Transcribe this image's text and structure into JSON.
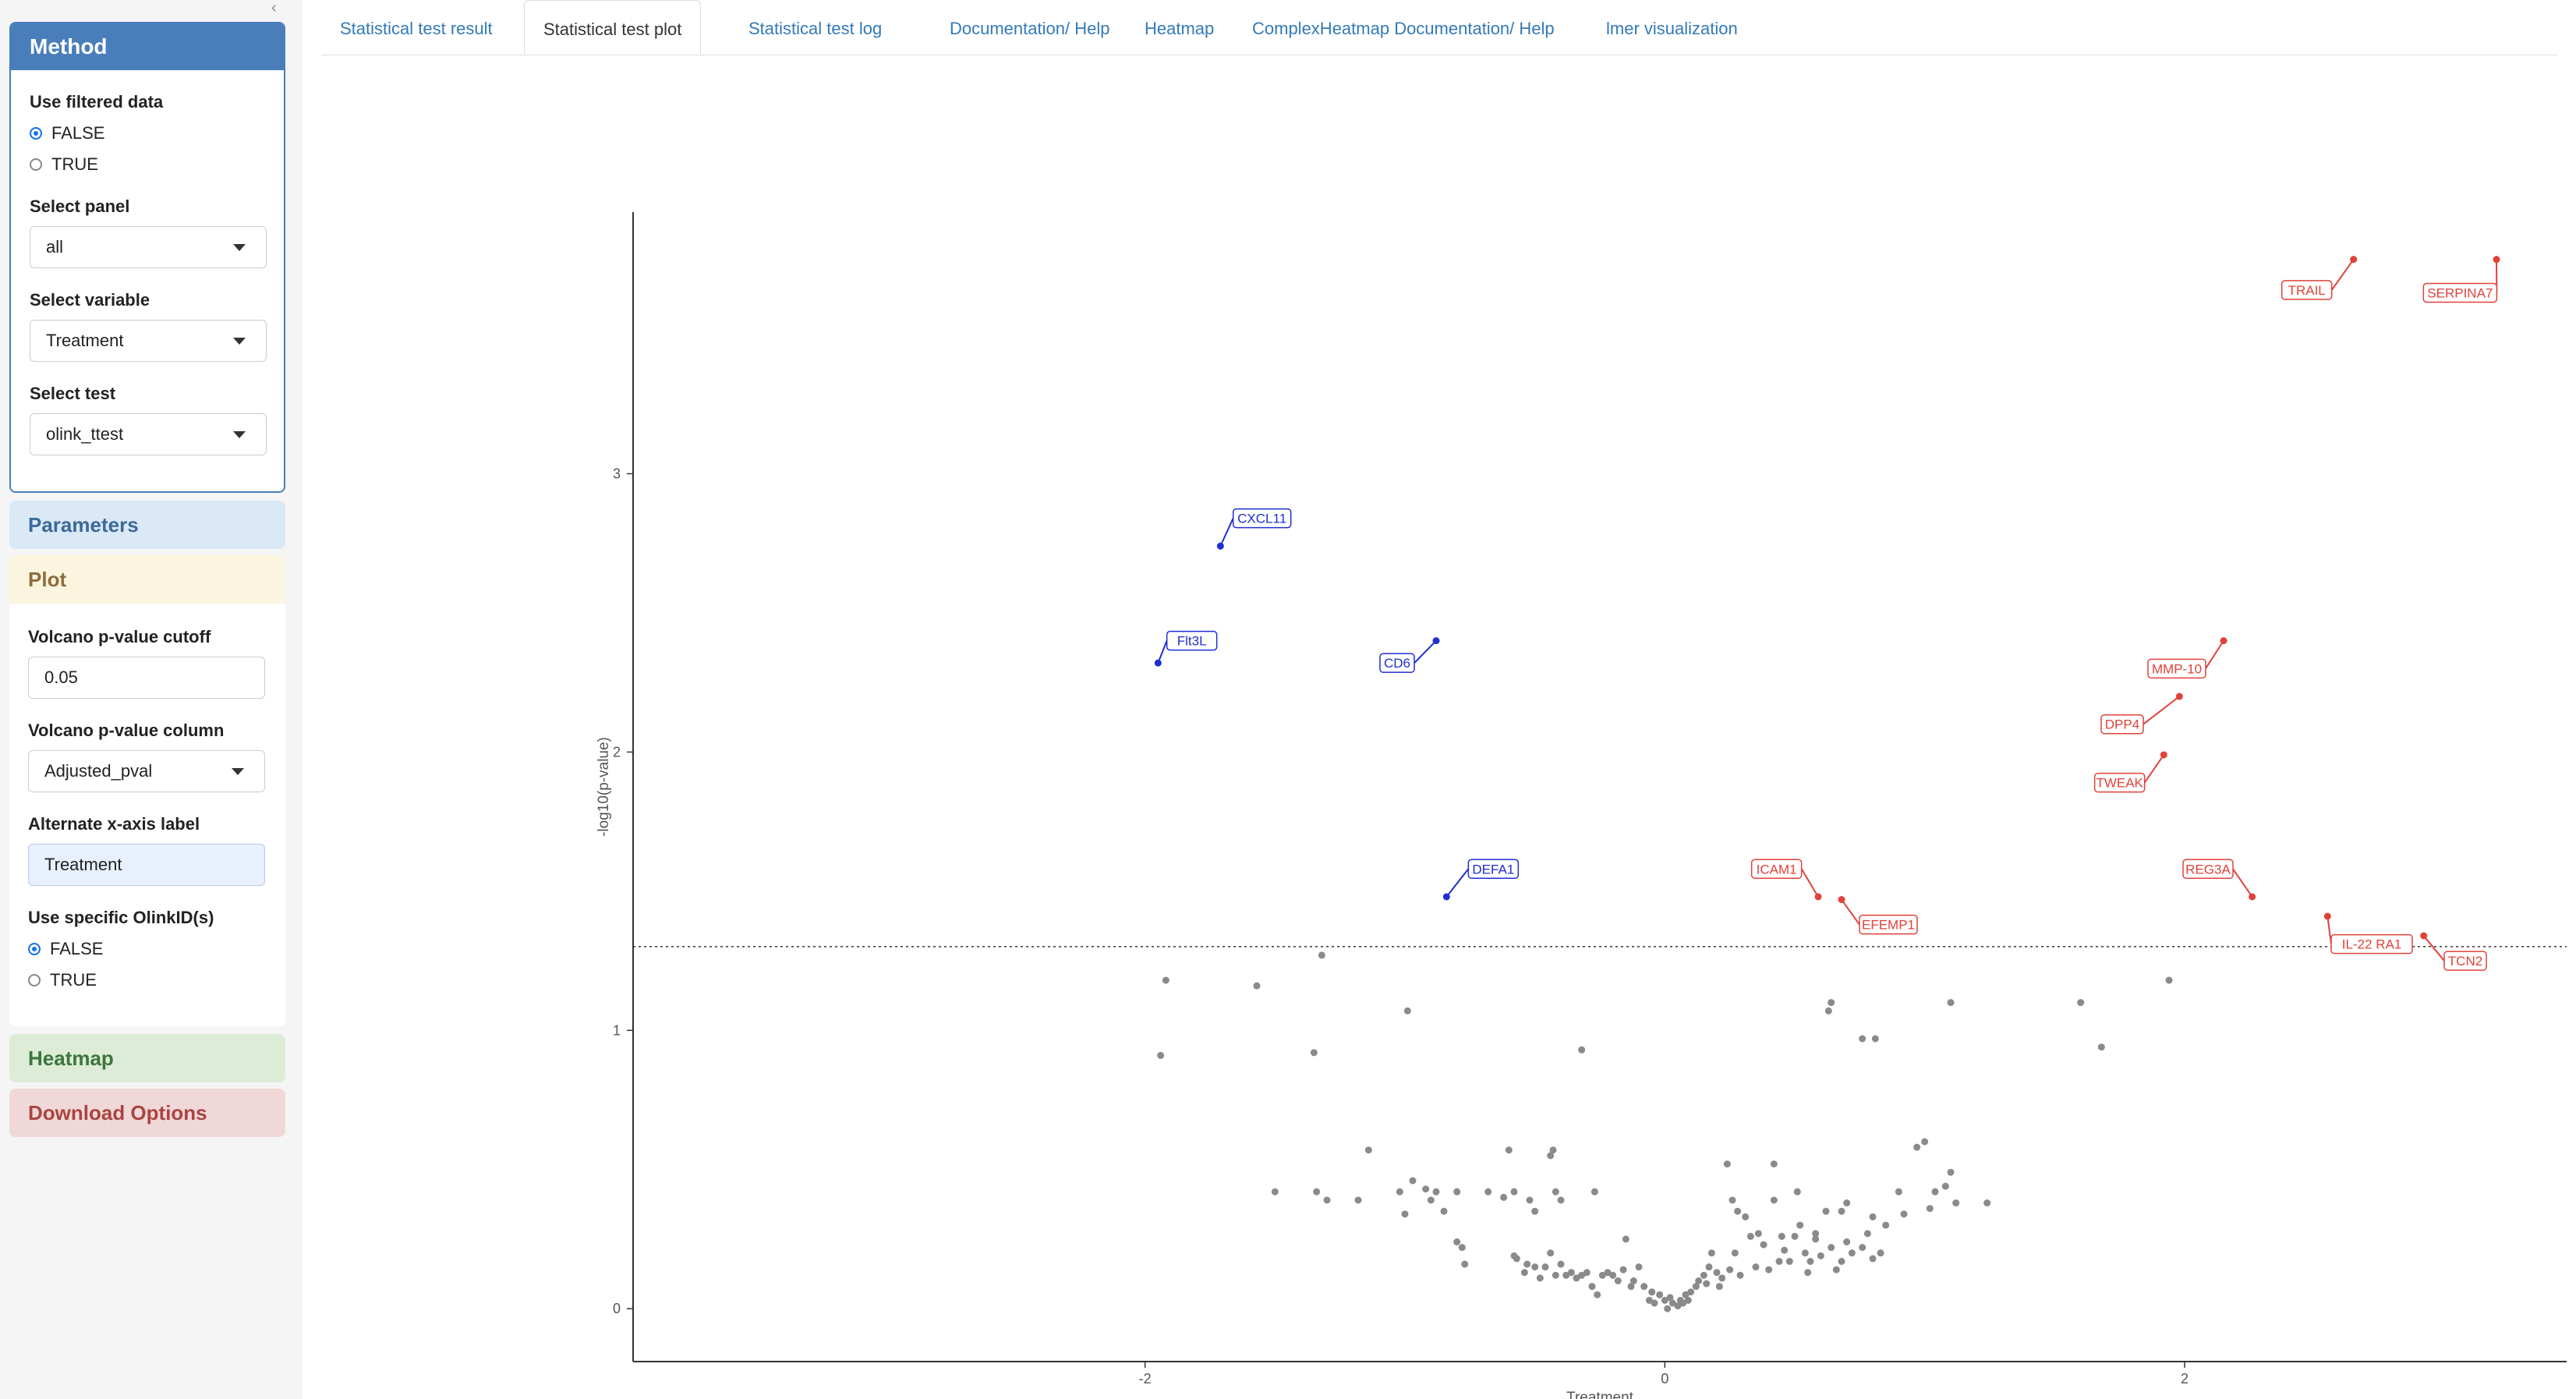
{
  "sidebar": {
    "method": {
      "title": "Method",
      "use_filtered_label": "Use filtered data",
      "use_filtered_options": [
        "FALSE",
        "TRUE"
      ],
      "use_filtered_selected": "FALSE",
      "panel_label": "Select panel",
      "panel_value": "all",
      "variable_label": "Select variable",
      "variable_value": "Treatment",
      "test_label": "Select test",
      "test_value": "olink_ttest"
    },
    "parameters_title": "Parameters",
    "plot": {
      "title": "Plot",
      "cutoff_label": "Volcano p-value cutoff",
      "cutoff_value": "0.05",
      "pcol_label": "Volcano p-value column",
      "pcol_value": "Adjusted_pval",
      "xaxis_label": "Alternate x-axis label",
      "xaxis_value": "Treatment",
      "olinkid_label": "Use specific OlinkID(s)",
      "olinkid_options": [
        "FALSE",
        "TRUE"
      ],
      "olinkid_selected": "FALSE"
    },
    "heatmap_title": "Heatmap",
    "download_title": "Download Options"
  },
  "tabs": [
    {
      "label": "Statistical test result",
      "active": false
    },
    {
      "label": "Statistical test plot",
      "active": true
    },
    {
      "label": "Statistical test log",
      "active": false
    },
    {
      "label": "Documentation/ Help",
      "active": false
    },
    {
      "label": "Heatmap",
      "active": false
    },
    {
      "label": "ComplexHeatmap Documentation/ Help",
      "active": false
    },
    {
      "label": "lmer visualization",
      "active": false
    }
  ],
  "colors": {
    "down": "#1f2fd1",
    "up": "#e0423a",
    "ns": "#8a8a8a",
    "accent": "#4a7ebb"
  },
  "chart_data": {
    "type": "scatter",
    "xlabel": "Treatment",
    "ylabel": "-log10(p-value)",
    "xlim": [
      -3.97,
      3.47
    ],
    "ylim": [
      -0.19,
      3.94
    ],
    "x_ticks": [
      -2,
      0,
      2
    ],
    "x_tick_labels": [
      "-2",
      "0",
      "2"
    ],
    "y_ticks": [
      0,
      1,
      2,
      3
    ],
    "y_tick_labels": [
      "0",
      "1",
      "2",
      "3"
    ],
    "cutoff_y": 1.301,
    "grid": false,
    "labeled": [
      {
        "label": "TRAIL",
        "x": 2.65,
        "y": 3.77,
        "group": "up",
        "lx": 2.47,
        "ly": 3.66
      },
      {
        "label": "SERPINA7",
        "x": 3.2,
        "y": 3.77,
        "group": "up",
        "lx": 3.06,
        "ly": 3.65
      },
      {
        "label": "CXCL11",
        "x": -1.71,
        "y": 2.74,
        "group": "down",
        "lx": -1.55,
        "ly": 2.84
      },
      {
        "label": "Flt3L",
        "x": -1.95,
        "y": 2.32,
        "group": "down",
        "lx": -1.82,
        "ly": 2.4
      },
      {
        "label": "CD6",
        "x": -0.88,
        "y": 2.4,
        "group": "down",
        "lx": -1.03,
        "ly": 2.32
      },
      {
        "label": "MMP-10",
        "x": 2.15,
        "y": 2.4,
        "group": "up",
        "lx": 1.97,
        "ly": 2.3
      },
      {
        "label": "DPP4",
        "x": 1.98,
        "y": 2.2,
        "group": "up",
        "lx": 1.76,
        "ly": 2.1
      },
      {
        "label": "TWEAK",
        "x": 1.92,
        "y": 1.99,
        "group": "up",
        "lx": 1.75,
        "ly": 1.89
      },
      {
        "label": "DEFA1",
        "x": -0.84,
        "y": 1.48,
        "group": "down",
        "lx": -0.66,
        "ly": 1.58
      },
      {
        "label": "ICAM1",
        "x": 0.59,
        "y": 1.48,
        "group": "up",
        "lx": 0.43,
        "ly": 1.58
      },
      {
        "label": "EFEMP1",
        "x": 0.68,
        "y": 1.47,
        "group": "up",
        "lx": 0.86,
        "ly": 1.38
      },
      {
        "label": "REG3A",
        "x": 2.26,
        "y": 1.48,
        "group": "up",
        "lx": 2.09,
        "ly": 1.58
      },
      {
        "label": "IL-22 RA1",
        "x": 2.55,
        "y": 1.41,
        "group": "up",
        "lx": 2.72,
        "ly": 1.31
      },
      {
        "label": "TCN2",
        "x": 2.92,
        "y": 1.34,
        "group": "up",
        "lx": 3.08,
        "ly": 1.25
      }
    ],
    "points": [
      [
        -1.92,
        1.18
      ],
      [
        -1.94,
        0.91
      ],
      [
        -1.57,
        1.16
      ],
      [
        -1.32,
        1.27
      ],
      [
        -1.35,
        0.92
      ],
      [
        -0.99,
        1.07
      ],
      [
        -0.32,
        0.93
      ],
      [
        0.63,
        1.07
      ],
      [
        0.64,
        1.1
      ],
      [
        0.76,
        0.97
      ],
      [
        0.81,
        0.97
      ],
      [
        1.1,
        1.1
      ],
      [
        1.6,
        1.1
      ],
      [
        1.68,
        0.94
      ],
      [
        1.94,
        1.18
      ],
      [
        -1.5,
        0.42
      ],
      [
        -1.34,
        0.42
      ],
      [
        -1.3,
        0.39
      ],
      [
        -1.18,
        0.39
      ],
      [
        -1.14,
        0.57
      ],
      [
        -1.02,
        0.42
      ],
      [
        -1.0,
        0.34
      ],
      [
        -0.97,
        0.46
      ],
      [
        -0.92,
        0.43
      ],
      [
        -0.9,
        0.39
      ],
      [
        -0.88,
        0.42
      ],
      [
        -0.85,
        0.35
      ],
      [
        -0.8,
        0.42
      ],
      [
        -0.68,
        0.42
      ],
      [
        -0.62,
        0.4
      ],
      [
        -0.6,
        0.57
      ],
      [
        -0.58,
        0.42
      ],
      [
        -0.52,
        0.39
      ],
      [
        -0.5,
        0.35
      ],
      [
        -0.44,
        0.55
      ],
      [
        -0.43,
        0.57
      ],
      [
        -0.42,
        0.42
      ],
      [
        -0.4,
        0.39
      ],
      [
        -0.27,
        0.42
      ],
      [
        -0.8,
        0.24
      ],
      [
        -0.78,
        0.22
      ],
      [
        -0.77,
        0.16
      ],
      [
        -0.58,
        0.19
      ],
      [
        -0.57,
        0.18
      ],
      [
        -0.54,
        0.13
      ],
      [
        -0.53,
        0.16
      ],
      [
        -0.5,
        0.15
      ],
      [
        -0.48,
        0.11
      ],
      [
        -0.46,
        0.15
      ],
      [
        -0.44,
        0.2
      ],
      [
        -0.42,
        0.12
      ],
      [
        -0.4,
        0.16
      ],
      [
        -0.38,
        0.12
      ],
      [
        -0.36,
        0.13
      ],
      [
        -0.34,
        0.11
      ],
      [
        -0.32,
        0.12
      ],
      [
        -0.3,
        0.13
      ],
      [
        -0.28,
        0.08
      ],
      [
        -0.26,
        0.05
      ],
      [
        -0.24,
        0.12
      ],
      [
        -0.22,
        0.13
      ],
      [
        -0.2,
        0.12
      ],
      [
        -0.18,
        0.1
      ],
      [
        -0.16,
        0.14
      ],
      [
        -0.15,
        0.25
      ],
      [
        -0.13,
        0.08
      ],
      [
        -0.12,
        0.1
      ],
      [
        -0.1,
        0.15
      ],
      [
        -0.08,
        0.08
      ],
      [
        -0.06,
        0.03
      ],
      [
        -0.05,
        0.06
      ],
      [
        -0.04,
        0.02
      ],
      [
        -0.02,
        0.05
      ],
      [
        0.0,
        0.03
      ],
      [
        0.01,
        0.0
      ],
      [
        0.02,
        0.04
      ],
      [
        0.03,
        0.02
      ],
      [
        0.05,
        0.01
      ],
      [
        0.06,
        0.03
      ],
      [
        0.07,
        0.02
      ],
      [
        0.08,
        0.05
      ],
      [
        0.09,
        0.03
      ],
      [
        0.1,
        0.06
      ],
      [
        0.12,
        0.08
      ],
      [
        0.13,
        0.1
      ],
      [
        0.15,
        0.12
      ],
      [
        0.16,
        0.09
      ],
      [
        0.17,
        0.15
      ],
      [
        0.18,
        0.2
      ],
      [
        0.2,
        0.13
      ],
      [
        0.21,
        0.08
      ],
      [
        0.22,
        0.11
      ],
      [
        0.25,
        0.14
      ],
      [
        0.26,
        0.39
      ],
      [
        0.27,
        0.2
      ],
      [
        0.28,
        0.35
      ],
      [
        0.29,
        0.12
      ],
      [
        0.31,
        0.33
      ],
      [
        0.33,
        0.26
      ],
      [
        0.35,
        0.15
      ],
      [
        0.36,
        0.27
      ],
      [
        0.38,
        0.23
      ],
      [
        0.4,
        0.14
      ],
      [
        0.42,
        0.39
      ],
      [
        0.44,
        0.17
      ],
      [
        0.45,
        0.26
      ],
      [
        0.46,
        0.21
      ],
      [
        0.48,
        0.17
      ],
      [
        0.5,
        0.26
      ],
      [
        0.51,
        0.42
      ],
      [
        0.52,
        0.3
      ],
      [
        0.54,
        0.2
      ],
      [
        0.55,
        0.13
      ],
      [
        0.56,
        0.17
      ],
      [
        0.58,
        0.25
      ],
      [
        0.6,
        0.19
      ],
      [
        0.62,
        0.35
      ],
      [
        0.64,
        0.22
      ],
      [
        0.66,
        0.14
      ],
      [
        0.68,
        0.17
      ],
      [
        0.7,
        0.24
      ],
      [
        0.72,
        0.2
      ],
      [
        0.24,
        0.52
      ],
      [
        0.42,
        0.52
      ],
      [
        0.58,
        0.27
      ],
      [
        0.68,
        0.35
      ],
      [
        0.7,
        0.38
      ],
      [
        0.78,
        0.27
      ],
      [
        0.8,
        0.33
      ],
      [
        0.9,
        0.42
      ],
      [
        0.92,
        0.34
      ],
      [
        0.97,
        0.58
      ],
      [
        1.0,
        0.6
      ],
      [
        1.02,
        0.36
      ],
      [
        1.04,
        0.42
      ],
      [
        1.1,
        0.49
      ],
      [
        1.12,
        0.38
      ],
      [
        1.24,
        0.38
      ],
      [
        1.08,
        0.44
      ],
      [
        0.8,
        0.18
      ],
      [
        0.76,
        0.22
      ],
      [
        0.83,
        0.2
      ],
      [
        0.85,
        0.3
      ]
    ]
  }
}
